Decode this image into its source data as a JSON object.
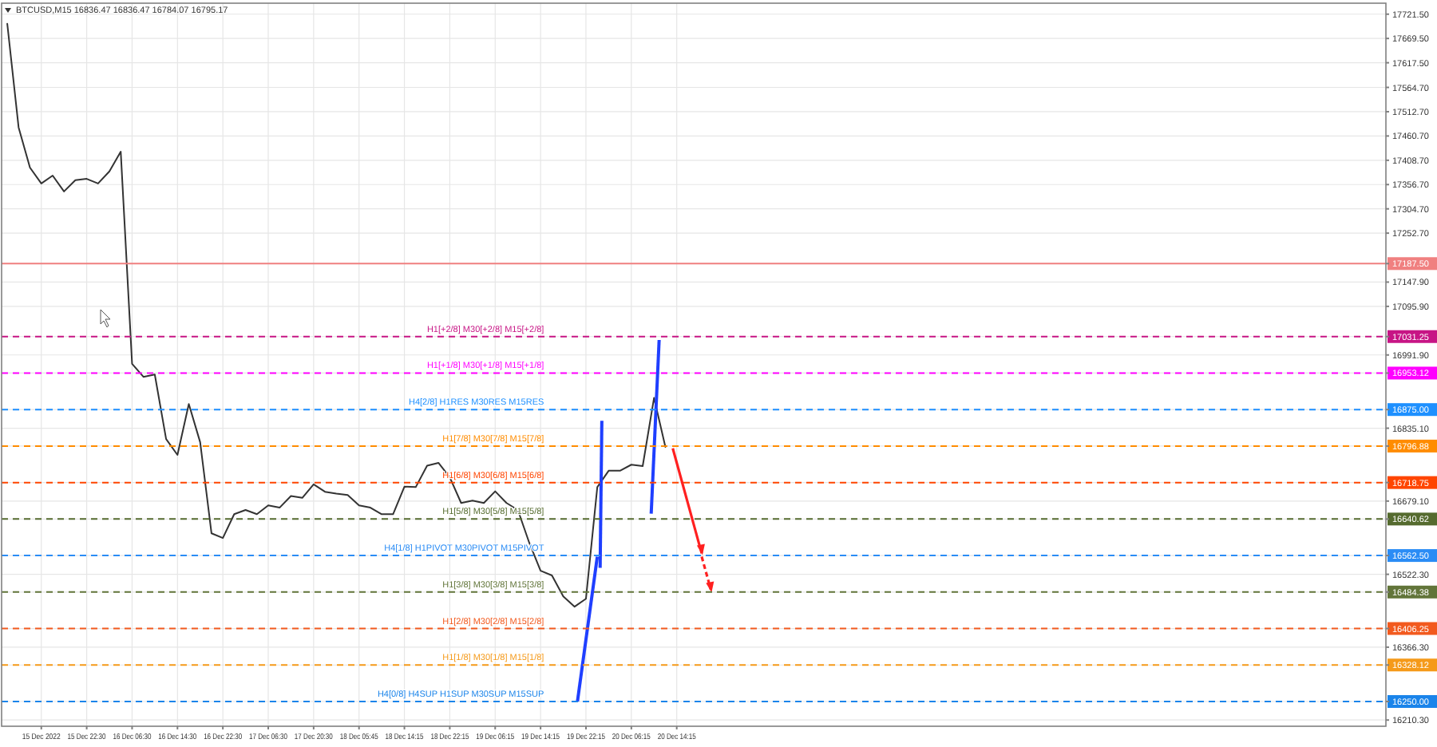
{
  "chart_data": {
    "type": "line",
    "title": "BTCUSD,M15  16836.47 16836.47 16784.07 16795.17",
    "categories": [
      null,
      null,
      null,
      "15 Dec 2022",
      null,
      null,
      null,
      "15 Dec 22:30",
      null,
      null,
      null,
      "16 Dec 06:30",
      null,
      null,
      null,
      "16 Dec 14:30",
      null,
      null,
      null,
      "16 Dec 22:30",
      null,
      null,
      null,
      "17 Dec 06:30",
      null,
      null,
      null,
      "17 Dec 20:30",
      null,
      null,
      null,
      "18 Dec 05:45",
      null,
      null,
      null,
      "18 Dec 14:15",
      null,
      null,
      null,
      "18 Dec 22:15",
      null,
      null,
      null,
      "19 Dec 06:15",
      null,
      null,
      null,
      "19 Dec 14:15",
      null,
      null,
      null,
      "19 Dec 22:15",
      null,
      null,
      null,
      "20 Dec 06:15",
      null,
      null,
      null,
      "20 Dec 14:15",
      null,
      null,
      null,
      null,
      null,
      null,
      null,
      null,
      null,
      null,
      null,
      null,
      null,
      null,
      null,
      null,
      null,
      null,
      null,
      null,
      null,
      null,
      null,
      null,
      null,
      null,
      null,
      null,
      null,
      null,
      null,
      null,
      null,
      null,
      null,
      null,
      null,
      null,
      null,
      null,
      null,
      null,
      null,
      null,
      null,
      null,
      null,
      null,
      null,
      null,
      null,
      null,
      null,
      null,
      null,
      null,
      null,
      null,
      null,
      null,
      null,
      null
    ],
    "series": [
      {
        "color": "#333333",
        "values": [
          17701,
          17479,
          17393,
          17359,
          17376,
          17342,
          17366,
          17369,
          17359,
          17385,
          17427,
          16973,
          16945,
          16950,
          16812,
          16778,
          16887,
          16805,
          16610,
          16600,
          16651,
          16660,
          16651,
          16670,
          16665,
          16690,
          16686,
          16715,
          16699,
          16695,
          16692,
          16670,
          16665,
          16651,
          16651,
          16710,
          16709,
          16755,
          16761,
          16730,
          16675,
          16680,
          16675,
          16700,
          16675,
          16660,
          16590,
          16530,
          16520,
          16475,
          16453,
          16470,
          16709,
          16744,
          16744,
          16757,
          16754,
          16900,
          16795,
          null,
          null,
          null,
          null,
          null,
          null,
          null,
          null,
          null,
          null,
          null,
          null,
          null,
          null,
          null,
          null,
          null,
          null,
          null,
          null,
          null,
          null,
          null,
          null,
          null,
          null,
          null,
          null,
          null,
          null,
          null,
          null,
          null,
          null,
          null,
          null,
          null,
          null,
          null,
          null,
          null,
          null,
          null,
          null,
          null,
          null,
          null,
          null,
          null,
          null,
          null,
          null,
          null,
          null,
          null,
          null,
          null,
          null,
          null,
          null,
          null,
          null,
          null
        ]
      }
    ],
    "ylim": [
      16197,
      17745
    ],
    "yticks": [
      {
        "value": 17721.5,
        "label": "17721.50"
      },
      {
        "value": 17669.5,
        "label": "17669.50"
      },
      {
        "value": 17617.5,
        "label": "17617.50"
      },
      {
        "value": 17564.7,
        "label": "17564.70"
      },
      {
        "value": 17512.7,
        "label": "17512.70"
      },
      {
        "value": 17460.7,
        "label": "17460.70"
      },
      {
        "value": 17408.7,
        "label": "17408.70"
      },
      {
        "value": 17356.7,
        "label": "17356.70"
      },
      {
        "value": 17304.7,
        "label": "17304.70"
      },
      {
        "value": 17252.7,
        "label": "17252.70"
      },
      {
        "value": 17147.9,
        "label": "17147.90"
      },
      {
        "value": 17095.9,
        "label": "17095.90"
      },
      {
        "value": 16991.9,
        "label": "16991.90"
      },
      {
        "value": 16835.1,
        "label": "16835.10"
      },
      {
        "value": 16679.1,
        "label": "16679.10"
      },
      {
        "value": 16522.3,
        "label": "16522.30"
      },
      {
        "value": 16366.3,
        "label": "16366.30"
      },
      {
        "value": 16210.3,
        "label": "16210.30"
      },
      {
        "value": 17187.5,
        "label": "17187.50"
      },
      {
        "value": 17031.25,
        "label": "17031.25"
      },
      {
        "value": 16953.12,
        "label": "16953.12"
      },
      {
        "value": 16875.0,
        "label": "16875.00"
      },
      {
        "value": 16796.88,
        "label": "16796.88"
      },
      {
        "value": 16718.75,
        "label": "16718.75"
      },
      {
        "value": 16640.62,
        "label": "16640.62"
      },
      {
        "value": 16562.5,
        "label": "16562.50"
      },
      {
        "value": 16484.38,
        "label": "16484.38"
      },
      {
        "value": 16406.25,
        "label": "16406.25"
      },
      {
        "value": 16328.12,
        "label": "16328.12"
      },
      {
        "value": 16250.0,
        "label": "16250.00"
      }
    ],
    "grid": true,
    "ref_lines": [
      {
        "axis": "y",
        "value": 17187.5,
        "label": null,
        "color": "#f08080",
        "line_style": "solid"
      },
      {
        "axis": "y",
        "value": 17031.25,
        "label": "H1[+2/8] M30[+2/8] M15[+2/8]",
        "color": "#c71585",
        "line_style": "dashed"
      },
      {
        "axis": "y",
        "value": 16953.12,
        "label": "H1[+1/8] M30[+1/8] M15[+1/8]",
        "color": "#ff00ff",
        "line_style": "dashed"
      },
      {
        "axis": "y",
        "value": 16875.0,
        "label": "H4[2/8] H1RES M30RES M15RES",
        "color": "#1e90ff",
        "line_style": "dashed"
      },
      {
        "axis": "y",
        "value": 16796.88,
        "label": "H1[7/8] M30[7/8] M15[7/8]",
        "color": "#ff8c00",
        "line_style": "dashed"
      },
      {
        "axis": "y",
        "value": 16718.75,
        "label": "H1[6/8] M30[6/8] M15[6/8]",
        "color": "#ff4500",
        "line_style": "dashed"
      },
      {
        "axis": "y",
        "value": 16640.62,
        "label": "H1[5/8] M30[5/8] M15[5/8]",
        "color": "#556b2f",
        "line_style": "dashed"
      },
      {
        "axis": "y",
        "value": 16562.5,
        "label": "H4[1/8] H1PIVOT M30PIVOT M15PIVOT",
        "color": "#2a8cf5",
        "line_style": "dashed"
      },
      {
        "axis": "y",
        "value": 16484.38,
        "label": "H1[3/8] M30[3/8] M15[3/8]",
        "color": "#62753a",
        "line_style": "dashed"
      },
      {
        "axis": "y",
        "value": 16406.25,
        "label": "H1[2/8] M30[2/8] M15[2/8]",
        "color": "#f25a1e",
        "line_style": "dashed"
      },
      {
        "axis": "y",
        "value": 16328.12,
        "label": "H1[1/8] M30[1/8] M15[1/8]",
        "color": "#f59a1a",
        "line_style": "dashed"
      },
      {
        "axis": "y",
        "value": 16250.0,
        "label": "H4[0/8] H4SUP H1SUP M30SUP M15SUP",
        "color": "#1a84ea",
        "line_style": "dashed"
      }
    ]
  }
}
